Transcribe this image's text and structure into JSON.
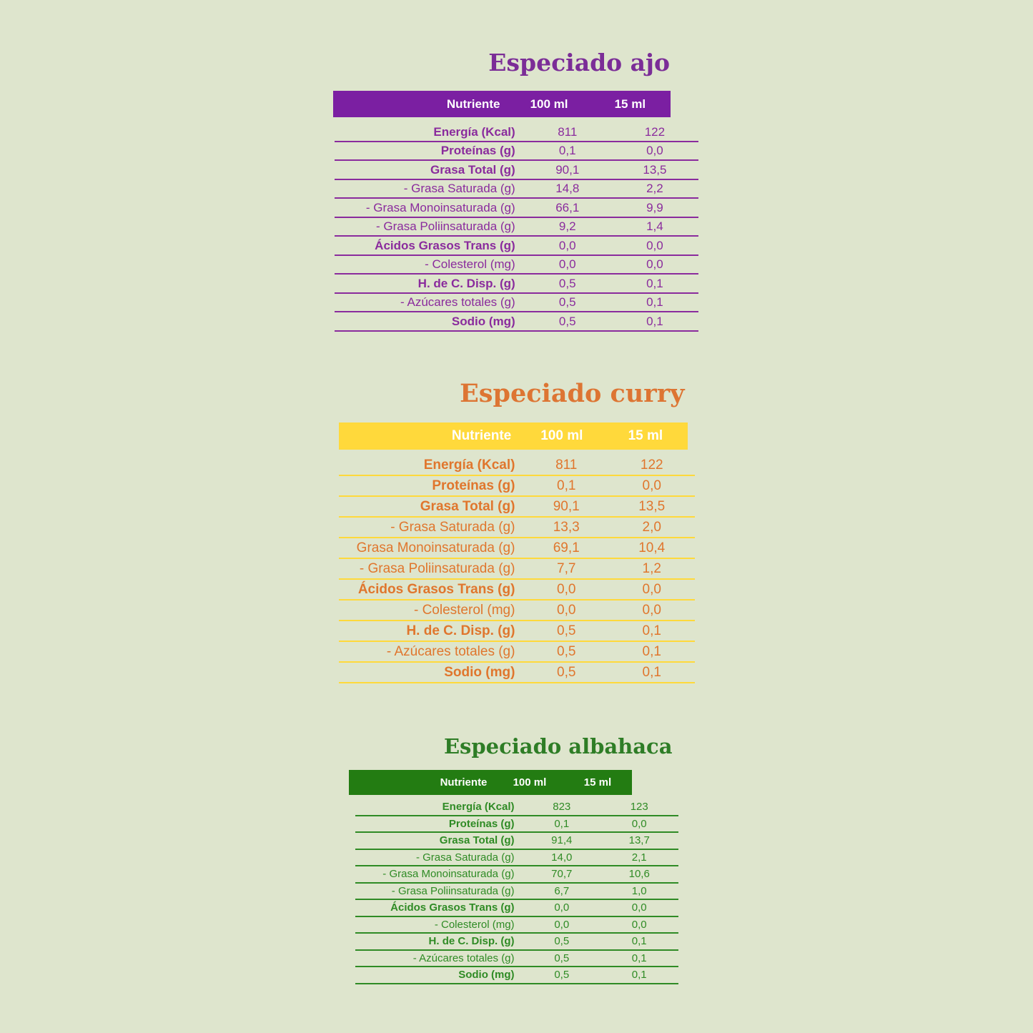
{
  "page": {
    "background_color": "#dee5cd"
  },
  "tables": [
    {
      "id": "ajo",
      "title": "Especiado ajo",
      "theme": {
        "header_bg": "#7b1fa2",
        "header_text": "#ffffff",
        "text": "#8a2b9d",
        "line": "#8a2b9d",
        "title_color": "#7b2d97"
      },
      "columns": {
        "nutrient": "Nutriente",
        "col100": "100 ml",
        "col15": "15 ml"
      },
      "rows": [
        {
          "label": "Energía (Kcal)",
          "bold": true,
          "v100": "811",
          "v15": "122"
        },
        {
          "label": "Proteínas (g)",
          "bold": true,
          "v100": "0,1",
          "v15": "0,0"
        },
        {
          "label": "Grasa Total (g)",
          "bold": true,
          "v100": "90,1",
          "v15": "13,5"
        },
        {
          "label": "- Grasa Saturada (g)",
          "bold": false,
          "v100": "14,8",
          "v15": "2,2"
        },
        {
          "label": "- Grasa Monoinsaturada (g)",
          "bold": false,
          "v100": "66,1",
          "v15": "9,9"
        },
        {
          "label": "- Grasa Poliinsaturada (g)",
          "bold": false,
          "v100": "9,2",
          "v15": "1,4"
        },
        {
          "label": "Ácidos Grasos Trans (g)",
          "bold": true,
          "v100": "0,0",
          "v15": "0,0"
        },
        {
          "label": "- Colesterol (mg)",
          "bold": false,
          "v100": "0,0",
          "v15": "0,0"
        },
        {
          "label": "H. de C. Disp. (g)",
          "bold": true,
          "v100": "0,5",
          "v15": "0,1"
        },
        {
          "label": "- Azúcares totales (g)",
          "bold": false,
          "v100": "0,5",
          "v15": "0,1"
        },
        {
          "label": "Sodio (mg)",
          "bold": true,
          "v100": "0,5",
          "v15": "0,1"
        }
      ]
    },
    {
      "id": "curry",
      "title": "Especiado curry",
      "theme": {
        "header_bg": "#ffd93b",
        "header_text": "#ffffff",
        "text": "#e0762d",
        "line": "#ffd93b",
        "title_color": "#dd7533"
      },
      "columns": {
        "nutrient": "Nutriente",
        "col100": "100 ml",
        "col15": "15 ml"
      },
      "rows": [
        {
          "label": "Energía (Kcal)",
          "bold": true,
          "v100": "811",
          "v15": "122"
        },
        {
          "label": "Proteínas (g)",
          "bold": true,
          "v100": "0,1",
          "v15": "0,0"
        },
        {
          "label": "Grasa Total (g)",
          "bold": true,
          "v100": "90,1",
          "v15": "13,5"
        },
        {
          "label": "- Grasa Saturada (g)",
          "bold": false,
          "v100": "13,3",
          "v15": "2,0"
        },
        {
          "label": "Grasa Monoinsaturada (g)",
          "bold": false,
          "v100": "69,1",
          "v15": "10,4"
        },
        {
          "label": "- Grasa Poliinsaturada (g)",
          "bold": false,
          "v100": "7,7",
          "v15": "1,2"
        },
        {
          "label": "Ácidos Grasos Trans (g)",
          "bold": true,
          "v100": "0,0",
          "v15": "0,0"
        },
        {
          "label": "- Colesterol (mg)",
          "bold": false,
          "v100": "0,0",
          "v15": "0,0"
        },
        {
          "label": "H. de C. Disp. (g)",
          "bold": true,
          "v100": "0,5",
          "v15": "0,1"
        },
        {
          "label": "- Azúcares totales (g)",
          "bold": false,
          "v100": "0,5",
          "v15": "0,1"
        },
        {
          "label": "Sodio (mg)",
          "bold": true,
          "v100": "0,5",
          "v15": "0,1"
        }
      ]
    },
    {
      "id": "albahaca",
      "title": "Especiado albahaca",
      "theme": {
        "header_bg": "#237c12",
        "header_text": "#ffffff",
        "text": "#2f8b25",
        "line": "#2f8b25",
        "title_color": "#2e7d26"
      },
      "columns": {
        "nutrient": "Nutriente",
        "col100": "100 ml",
        "col15": "15 ml"
      },
      "rows": [
        {
          "label": "Energía (Kcal)",
          "bold": true,
          "v100": "823",
          "v15": "123"
        },
        {
          "label": "Proteínas (g)",
          "bold": true,
          "v100": "0,1",
          "v15": "0,0"
        },
        {
          "label": "Grasa Total (g)",
          "bold": true,
          "v100": "91,4",
          "v15": "13,7"
        },
        {
          "label": "- Grasa Saturada (g)",
          "bold": false,
          "v100": "14,0",
          "v15": "2,1"
        },
        {
          "label": "- Grasa Monoinsaturada (g)",
          "bold": false,
          "v100": "70,7",
          "v15": "10,6"
        },
        {
          "label": "- Grasa Poliinsaturada (g)",
          "bold": false,
          "v100": "6,7",
          "v15": "1,0"
        },
        {
          "label": "Ácidos Grasos Trans (g)",
          "bold": true,
          "v100": "0,0",
          "v15": "0,0"
        },
        {
          "label": "- Colesterol (mg)",
          "bold": false,
          "v100": "0,0",
          "v15": "0,0"
        },
        {
          "label": "H. de C. Disp. (g)",
          "bold": true,
          "v100": "0,5",
          "v15": "0,1"
        },
        {
          "label": "- Azúcares totales (g)",
          "bold": false,
          "v100": "0,5",
          "v15": "0,1"
        },
        {
          "label": "Sodio (mg)",
          "bold": true,
          "v100": "0,5",
          "v15": "0,1"
        }
      ]
    }
  ]
}
